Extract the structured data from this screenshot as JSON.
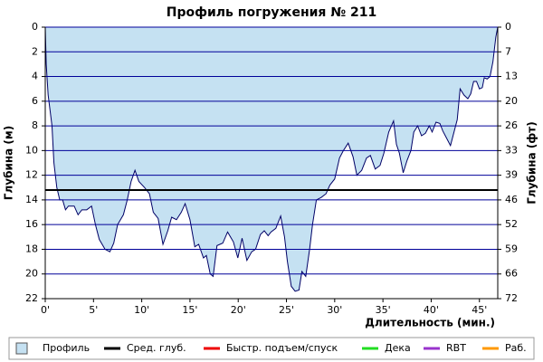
{
  "chart_data": {
    "type": "area",
    "title": "Профиль погружения № 211",
    "y_label": "Глубина (м)",
    "y2_label": "Глубина (фт)",
    "x_label": "Длительность (мин.)",
    "x": [
      0,
      0.1,
      0.3,
      0.7,
      0.9,
      1.2,
      1.5,
      1.8,
      2.1,
      2.4,
      3.0,
      3.4,
      3.8,
      4.3,
      4.8,
      5.2,
      5.6,
      6.2,
      6.7,
      7.1,
      7.5,
      8.1,
      8.5,
      8.9,
      9.3,
      9.7,
      10.3,
      10.8,
      11.2,
      11.7,
      12.2,
      12.7,
      13.1,
      13.6,
      14.1,
      14.5,
      15.0,
      15.5,
      15.9,
      16.4,
      16.7,
      17.1,
      17.4,
      17.8,
      18.4,
      18.9,
      19.5,
      19.96,
      20.4,
      20.9,
      21.4,
      21.8,
      22.3,
      22.7,
      23.1,
      23.4,
      23.9,
      24.4,
      24.8,
      25.1,
      25.5,
      25.9,
      26.3,
      26.6,
      27.0,
      27.4,
      27.7,
      28.1,
      28.6,
      29.1,
      29.5,
      30.0,
      30.5,
      30.9,
      31.4,
      31.9,
      32.3,
      32.8,
      33.3,
      33.7,
      34.2,
      34.7,
      35.1,
      35.6,
      36.1,
      36.4,
      36.7,
      37.1,
      37.5,
      37.9,
      38.2,
      38.6,
      39.0,
      39.4,
      39.8,
      40.1,
      40.5,
      40.9,
      41.2,
      41.6,
      42.0,
      42.4,
      42.7,
      43.0,
      43.4,
      43.8,
      44.1,
      44.4,
      44.7,
      45.0,
      45.3,
      45.5,
      45.8,
      46.1,
      46.4,
      46.7,
      46.9
    ],
    "series": [
      {
        "name": "Профиль",
        "color": "#c5e1f2",
        "line_color": "#000066",
        "values": [
          0,
          3,
          5.5,
          8,
          11,
          13,
          14,
          14,
          14.8,
          14.5,
          14.5,
          15.2,
          14.8,
          14.8,
          14.5,
          16,
          17.2,
          18,
          18.2,
          17.5,
          16,
          15.2,
          14,
          12.5,
          11.6,
          12.5,
          13,
          13.5,
          15,
          15.5,
          17.6,
          16.5,
          15.4,
          15.6,
          15,
          14.3,
          15.6,
          17.8,
          17.6,
          18.7,
          18.5,
          20,
          20.2,
          17.7,
          17.5,
          16.6,
          17.4,
          18.7,
          17.1,
          18.9,
          18.2,
          18,
          16.8,
          16.5,
          16.9,
          16.6,
          16.3,
          15.3,
          17,
          19,
          21,
          21.4,
          21.3,
          19.8,
          20.2,
          18,
          16,
          14,
          13.8,
          13.5,
          12.8,
          12.3,
          10.6,
          10,
          9.4,
          10.5,
          12,
          11.6,
          10.6,
          10.4,
          11.5,
          11.2,
          10.2,
          8.5,
          7.6,
          9.5,
          10.2,
          11.8,
          10.8,
          10,
          8.5,
          8,
          8.8,
          8.6,
          8,
          8.5,
          7.7,
          7.8,
          8.4,
          9,
          9.6,
          8.4,
          7.5,
          5,
          5.5,
          5.8,
          5.4,
          4.4,
          4.4,
          5,
          4.9,
          4.1,
          4.2,
          4,
          2.8,
          0.8,
          0
        ]
      }
    ],
    "lines": [
      {
        "name": "Сред. глуб.",
        "color": "#000000",
        "value": 13.2
      },
      {
        "name": "Быстр. подъем/спуск",
        "color": "#ee0000"
      },
      {
        "name": "Дека",
        "color": "#22dd22"
      },
      {
        "name": "RBT",
        "color": "#9933cc"
      },
      {
        "name": "Раб.",
        "color": "#ff9900"
      }
    ],
    "xlim": [
      0,
      46.9
    ],
    "xticks": [
      {
        "value": 0,
        "label": "0'"
      },
      {
        "value": 5,
        "label": "5'"
      },
      {
        "value": 10,
        "label": "10'"
      },
      {
        "value": 15,
        "label": "15'"
      },
      {
        "value": 20,
        "label": "20'"
      },
      {
        "value": 25,
        "label": "25'"
      },
      {
        "value": 30,
        "label": "30'"
      },
      {
        "value": 35,
        "label": "35'"
      },
      {
        "value": 40,
        "label": "40'"
      },
      {
        "value": 45,
        "label": "45'"
      }
    ],
    "ylim": [
      0,
      22
    ],
    "yticks": [
      0,
      2,
      4,
      6,
      8,
      10,
      12,
      14,
      16,
      18,
      20,
      22
    ],
    "y_inverted": true,
    "y2lim": [
      0,
      72.18
    ],
    "y2ticks": [
      {
        "value": 0,
        "label": "0"
      },
      {
        "value": 6.56,
        "label": "7"
      },
      {
        "value": 13.12,
        "label": "13"
      },
      {
        "value": 19.69,
        "label": "20"
      },
      {
        "value": 26.25,
        "label": "26"
      },
      {
        "value": 32.81,
        "label": "33"
      },
      {
        "value": 39.37,
        "label": "39"
      },
      {
        "value": 45.93,
        "label": "46"
      },
      {
        "value": 52.49,
        "label": "52"
      },
      {
        "value": 59.06,
        "label": "59"
      },
      {
        "value": 65.62,
        "label": "66"
      },
      {
        "value": 72.18,
        "label": "72"
      }
    ],
    "grid": true,
    "grid_color": "#000099"
  }
}
